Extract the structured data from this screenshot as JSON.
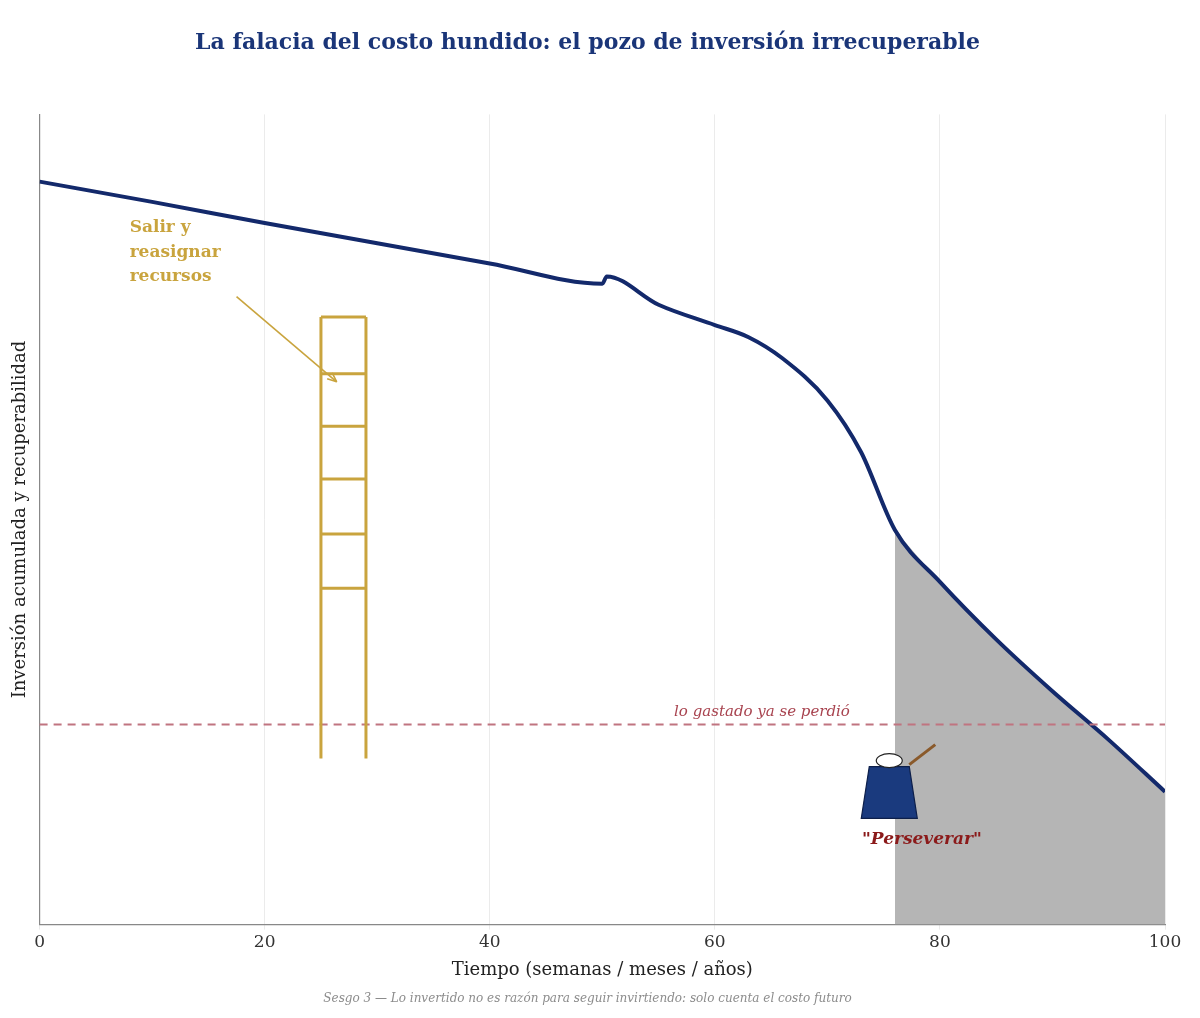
{
  "chart_data": {
    "type": "line",
    "title": "La falacia del costo hundido: el pozo de inversión irrecuperable",
    "x_label": "Tiempo (semanas / meses / años)",
    "y_label": "Inversión acumulada y recuperabilidad",
    "footnote": "Sesgo 3 — Lo invertido no es razón para seguir invirtiendo: solo cuenta el costo futuro",
    "x": [
      0,
      10,
      20,
      30,
      40,
      50,
      50.4,
      55,
      60,
      63,
      66,
      70,
      73,
      76,
      80,
      85,
      90,
      95,
      100
    ],
    "values": [
      91.7,
      89.2,
      86.6,
      84.1,
      81.6,
      79.1,
      80.0,
      76.5,
      74.0,
      72.5,
      69.9,
      64.7,
      58.3,
      48.7,
      42.3,
      35.2,
      28.8,
      22.8,
      16.4
    ],
    "color": "#13296b",
    "xlim": [
      0,
      100
    ],
    "xticks": [
      0,
      20,
      40,
      60,
      80,
      100
    ],
    "ylim": [
      0,
      100
    ],
    "grid": "x",
    "tick_labels": "x",
    "shaded_region": {
      "x_from": 76
    },
    "reference_line": {
      "y": 24.7,
      "label": "lo gastado ya se perdió",
      "line_style": "dashed"
    },
    "annotations": [
      {
        "text": [
          "Salir y",
          "reasignar",
          "recursos"
        ]
      },
      {
        "text": "\"Perseverar\""
      }
    ]
  }
}
